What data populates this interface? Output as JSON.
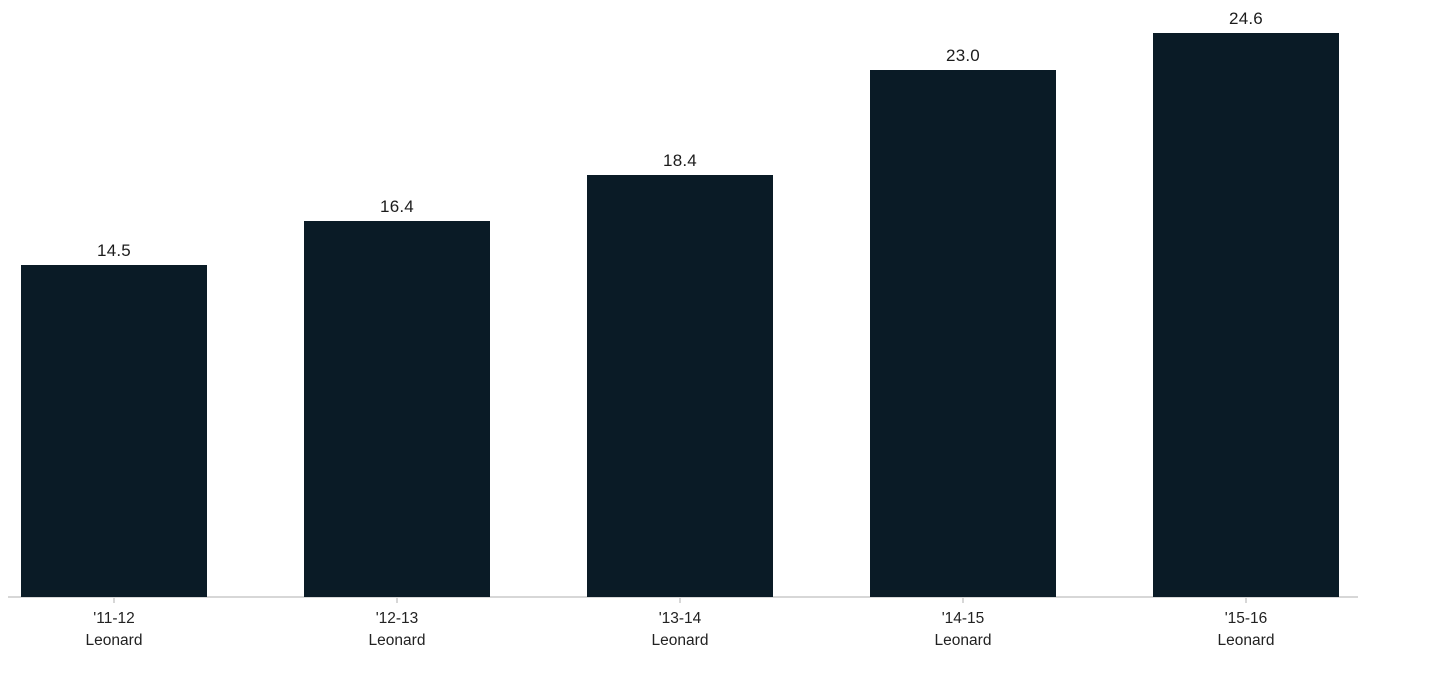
{
  "chart_data": {
    "type": "bar",
    "categories": [
      [
        "'11-12",
        "Leonard"
      ],
      [
        "'12-13",
        "Leonard"
      ],
      [
        "'13-14",
        "Leonard"
      ],
      [
        "'14-15",
        "Leonard"
      ],
      [
        "'15-16",
        "Leonard"
      ]
    ],
    "values": [
      14.5,
      16.4,
      18.4,
      23.0,
      24.6
    ],
    "value_labels": [
      "14.5",
      "16.4",
      "18.4",
      "23.0",
      "24.6"
    ],
    "series_name": "Leonard",
    "title": "",
    "xlabel": "",
    "ylabel": "",
    "ylim": [
      0,
      26
    ],
    "grid": false,
    "legend": "none",
    "bar_color": "#0a1b26",
    "axis_line_color": "#d7d7d7",
    "value_label_color": "#1c1c1c",
    "tick_label_color": "#222222",
    "background_color": "#ffffff"
  }
}
